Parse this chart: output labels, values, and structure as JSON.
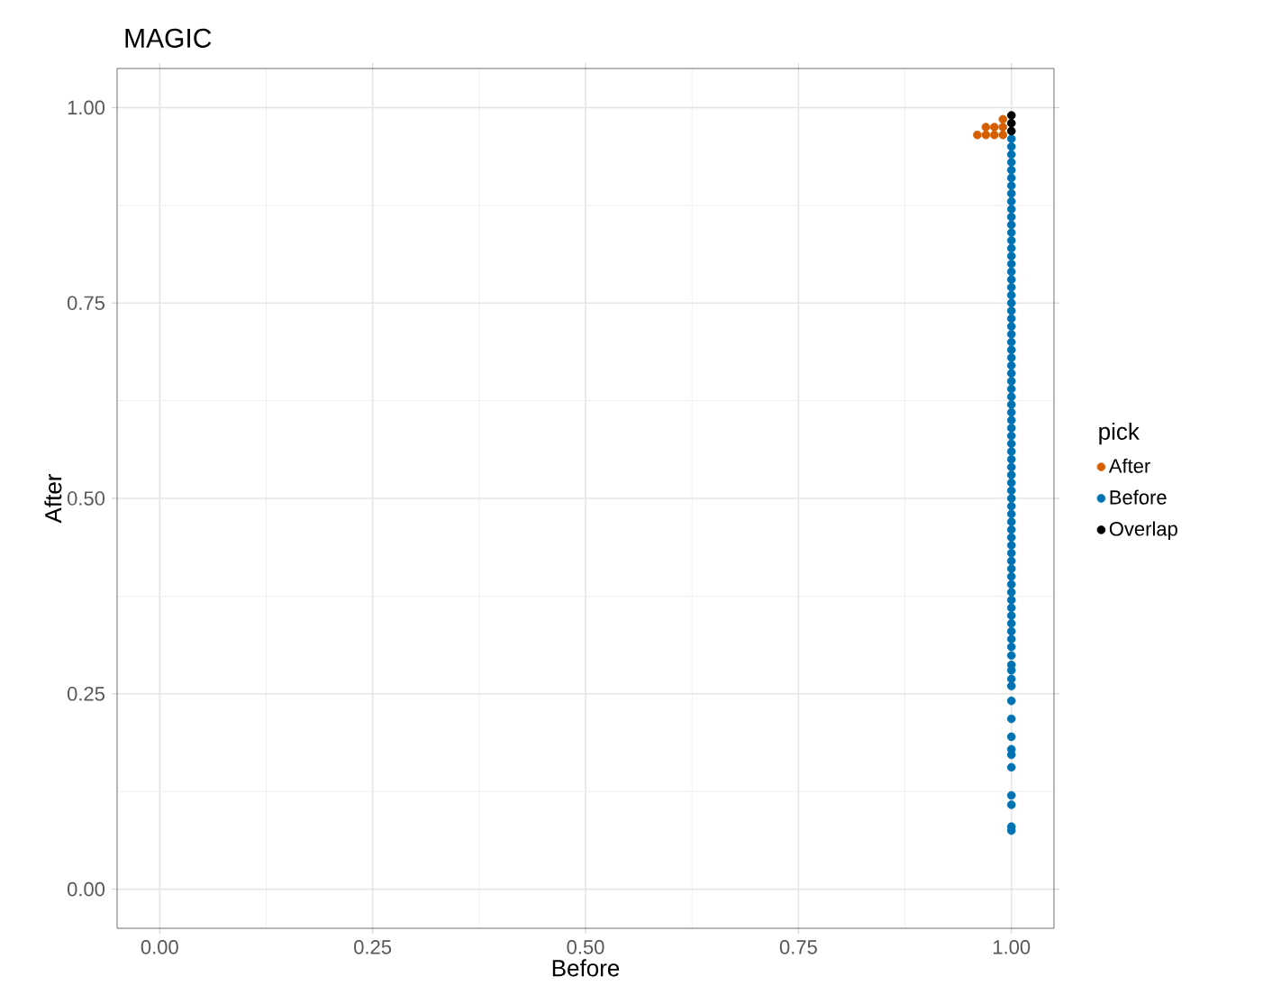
{
  "chart_data": {
    "type": "scatter",
    "title": "MAGIC",
    "xlabel": "Before",
    "ylabel": "After",
    "legend_title": "pick",
    "legend": "right",
    "grid": true,
    "xlim": [
      -0.05,
      1.05
    ],
    "ylim": [
      -0.05,
      1.05
    ],
    "xticks": [
      {
        "value": 0,
        "label": "0.00"
      },
      {
        "value": 0.25,
        "label": "0.25"
      },
      {
        "value": 0.5,
        "label": "0.50"
      },
      {
        "value": 0.75,
        "label": "0.75"
      },
      {
        "value": 1,
        "label": "1.00"
      }
    ],
    "yticks": [
      {
        "value": 0,
        "label": "0.00"
      },
      {
        "value": 0.25,
        "label": "0.25"
      },
      {
        "value": 0.5,
        "label": "0.50"
      },
      {
        "value": 0.75,
        "label": "0.75"
      },
      {
        "value": 1,
        "label": "1.00"
      }
    ],
    "series": [
      {
        "name": "After",
        "color": "#d55e00",
        "x": [
          0.96,
          0.97,
          0.98,
          0.99,
          0.97,
          0.98,
          0.99,
          0.99
        ],
        "values": [
          0.965,
          0.965,
          0.965,
          0.965,
          0.975,
          0.975,
          0.975,
          0.985
        ]
      },
      {
        "name": "Before",
        "color": "#0072b2",
        "x": [
          1,
          1,
          1,
          1,
          1,
          1,
          1,
          1,
          1,
          1,
          1,
          1,
          1,
          1,
          1,
          1,
          1,
          1,
          1,
          1,
          1,
          1,
          1,
          1,
          1,
          1,
          1,
          1,
          1,
          1,
          1,
          1,
          1,
          1,
          1,
          1,
          1,
          1,
          1,
          1,
          1,
          1,
          1,
          1,
          1,
          1,
          1,
          1,
          1,
          1,
          1,
          1,
          1,
          1,
          1,
          1,
          1,
          1,
          1,
          1,
          1,
          1,
          1,
          1,
          1,
          1,
          1,
          1,
          1,
          1,
          1,
          1,
          1,
          1,
          1,
          1,
          1,
          1,
          1,
          1,
          1
        ],
        "values": [
          0.075,
          0.08,
          0.108,
          0.12,
          0.156,
          0.172,
          0.179,
          0.195,
          0.218,
          0.241,
          0.26,
          0.269,
          0.28,
          0.287,
          0.299,
          0.31,
          0.32,
          0.33,
          0.34,
          0.35,
          0.36,
          0.37,
          0.38,
          0.39,
          0.4,
          0.41,
          0.42,
          0.43,
          0.44,
          0.45,
          0.46,
          0.47,
          0.48,
          0.49,
          0.5,
          0.51,
          0.52,
          0.53,
          0.54,
          0.55,
          0.56,
          0.57,
          0.58,
          0.59,
          0.6,
          0.61,
          0.62,
          0.63,
          0.64,
          0.65,
          0.66,
          0.67,
          0.68,
          0.69,
          0.7,
          0.71,
          0.72,
          0.73,
          0.74,
          0.75,
          0.76,
          0.77,
          0.78,
          0.79,
          0.8,
          0.81,
          0.82,
          0.83,
          0.84,
          0.85,
          0.86,
          0.87,
          0.88,
          0.89,
          0.9,
          0.91,
          0.92,
          0.93,
          0.94,
          0.95,
          0.96
        ]
      },
      {
        "name": "Overlap",
        "color": "#000000",
        "x": [
          1,
          1,
          1
        ],
        "values": [
          0.97,
          0.98,
          0.99
        ]
      }
    ]
  }
}
